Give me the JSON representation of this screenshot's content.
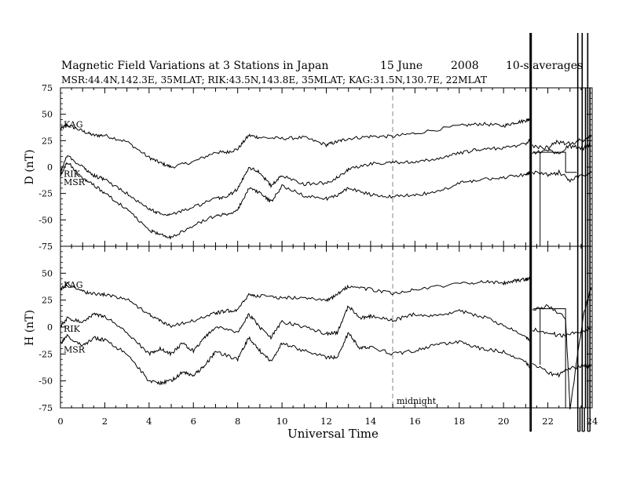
{
  "title": {
    "main": "Magnetic Field Variations at 3 Stations in Japan",
    "day": "15 June",
    "year": "2008",
    "avg": "10-s averages",
    "stations": "MSR:44.4N,142.3E, 35MLAT;  RIK:43.5N,143.8E, 35MLAT;  KAG:31.5N,130.7E, 22MLAT"
  },
  "chart_data": [
    {
      "type": "line",
      "panel": "D",
      "ylabel": "D (nT)",
      "xlabel": "",
      "ylim": [
        -75,
        75
      ],
      "xlim": [
        0,
        24
      ],
      "yticks": [
        "75",
        "50",
        "25",
        "0",
        "-25",
        "-50",
        "-75"
      ],
      "series": [
        {
          "name": "KAG",
          "x": [
            0,
            0.3,
            1,
            1.5,
            2,
            3,
            4,
            4.5,
            5,
            6,
            7,
            7.5,
            8,
            8.5,
            9,
            10,
            11,
            12,
            12.5,
            13,
            14,
            15,
            16,
            18,
            19,
            20,
            20.5,
            21,
            21.2
          ],
          "y": [
            36,
            40,
            34,
            30,
            30,
            24,
            9,
            4,
            0,
            5,
            14,
            14,
            17,
            30,
            28,
            27,
            28,
            21,
            24,
            27,
            29,
            29,
            32,
            39,
            41,
            39,
            42,
            44,
            46
          ]
        },
        {
          "name": "RIK",
          "x": [
            0,
            0.3,
            1,
            1.5,
            2,
            3,
            4,
            4.5,
            5,
            6,
            7,
            7.5,
            8,
            8.5,
            9,
            9.5,
            10,
            11,
            12,
            12.5,
            13,
            14,
            15,
            16,
            17,
            18,
            19,
            20,
            21,
            21.2
          ],
          "y": [
            -5,
            11,
            0,
            -8,
            -12,
            -25,
            -40,
            -44,
            -45,
            -38,
            -30,
            -28,
            -21,
            0,
            -5,
            -18,
            -8,
            -16,
            -15,
            -10,
            -2,
            3,
            5,
            4,
            8,
            13,
            17,
            18,
            22,
            26
          ]
        },
        {
          "name": "MSR",
          "x": [
            0,
            0.3,
            1,
            1.5,
            2,
            3,
            4,
            4.5,
            5,
            6,
            7,
            7.5,
            8,
            8.5,
            9,
            9.5,
            10,
            11,
            12,
            12.5,
            13,
            14,
            15,
            16,
            17,
            18,
            19,
            20,
            21,
            21.2
          ],
          "y": [
            -8,
            5,
            -10,
            -17,
            -25,
            -40,
            -60,
            -64,
            -67,
            -55,
            -46,
            -45,
            -40,
            -20,
            -24,
            -33,
            -18,
            -27,
            -30,
            -27,
            -20,
            -26,
            -28,
            -26,
            -24,
            -15,
            -12,
            -10,
            -7,
            -5
          ]
        }
      ]
    },
    {
      "type": "line",
      "panel": "H",
      "ylabel": "H (nT)",
      "xlabel": "Universal Time",
      "ylim": [
        -75,
        75
      ],
      "xlim": [
        0,
        24
      ],
      "yticks": [
        "",
        "50",
        "25",
        "0",
        "-25",
        "-50",
        "-75"
      ],
      "xticks": [
        "0",
        "2",
        "4",
        "6",
        "8",
        "10",
        "12",
        "14",
        "16",
        "18",
        "20",
        "22",
        "24"
      ],
      "annotation": "midnight",
      "series": [
        {
          "name": "KAG",
          "x": [
            0,
            0.3,
            1,
            1.5,
            2,
            3,
            4,
            4.5,
            5,
            6,
            7,
            7.5,
            8,
            8.5,
            9,
            10,
            11,
            12,
            12.5,
            13,
            14,
            15,
            16,
            18,
            19,
            20,
            20.5,
            21,
            21.2
          ],
          "y": [
            35,
            40,
            33,
            31,
            30,
            26,
            12,
            6,
            1,
            6,
            13,
            15,
            16,
            30,
            29,
            27,
            28,
            24,
            30,
            38,
            35,
            31,
            35,
            40,
            42,
            41,
            43,
            44,
            46
          ]
        },
        {
          "name": "RIK",
          "x": [
            0,
            0.3,
            1,
            1.5,
            2,
            3,
            4,
            4.5,
            5,
            5.5,
            6,
            6.5,
            7,
            8,
            8.5,
            9,
            9.5,
            10,
            11,
            12,
            12.5,
            13,
            13.5,
            14,
            15,
            16,
            17,
            18,
            19,
            20,
            21,
            21.2
          ],
          "y": [
            0,
            8,
            5,
            12,
            10,
            -5,
            -25,
            -20,
            -25,
            -15,
            -22,
            -10,
            0,
            -5,
            12,
            0,
            -10,
            5,
            0,
            -6,
            -5,
            20,
            8,
            10,
            6,
            12,
            10,
            15,
            10,
            2,
            -10,
            -12
          ]
        },
        {
          "name": "MSR",
          "x": [
            0,
            0.3,
            1,
            1.5,
            2,
            3,
            4,
            4.5,
            5,
            5.5,
            6,
            6.5,
            7,
            8,
            8.5,
            9,
            9.5,
            10,
            11,
            12,
            12.5,
            13,
            13.5,
            14,
            15,
            16,
            17,
            18,
            19,
            20,
            21,
            21.2
          ],
          "y": [
            -15,
            -8,
            -18,
            -10,
            -12,
            -25,
            -50,
            -52,
            -50,
            -42,
            -45,
            -36,
            -23,
            -30,
            -10,
            -22,
            -32,
            -15,
            -22,
            -28,
            -28,
            -5,
            -20,
            -18,
            -25,
            -22,
            -16,
            -14,
            -20,
            -23,
            -32,
            -38
          ]
        }
      ]
    }
  ]
}
